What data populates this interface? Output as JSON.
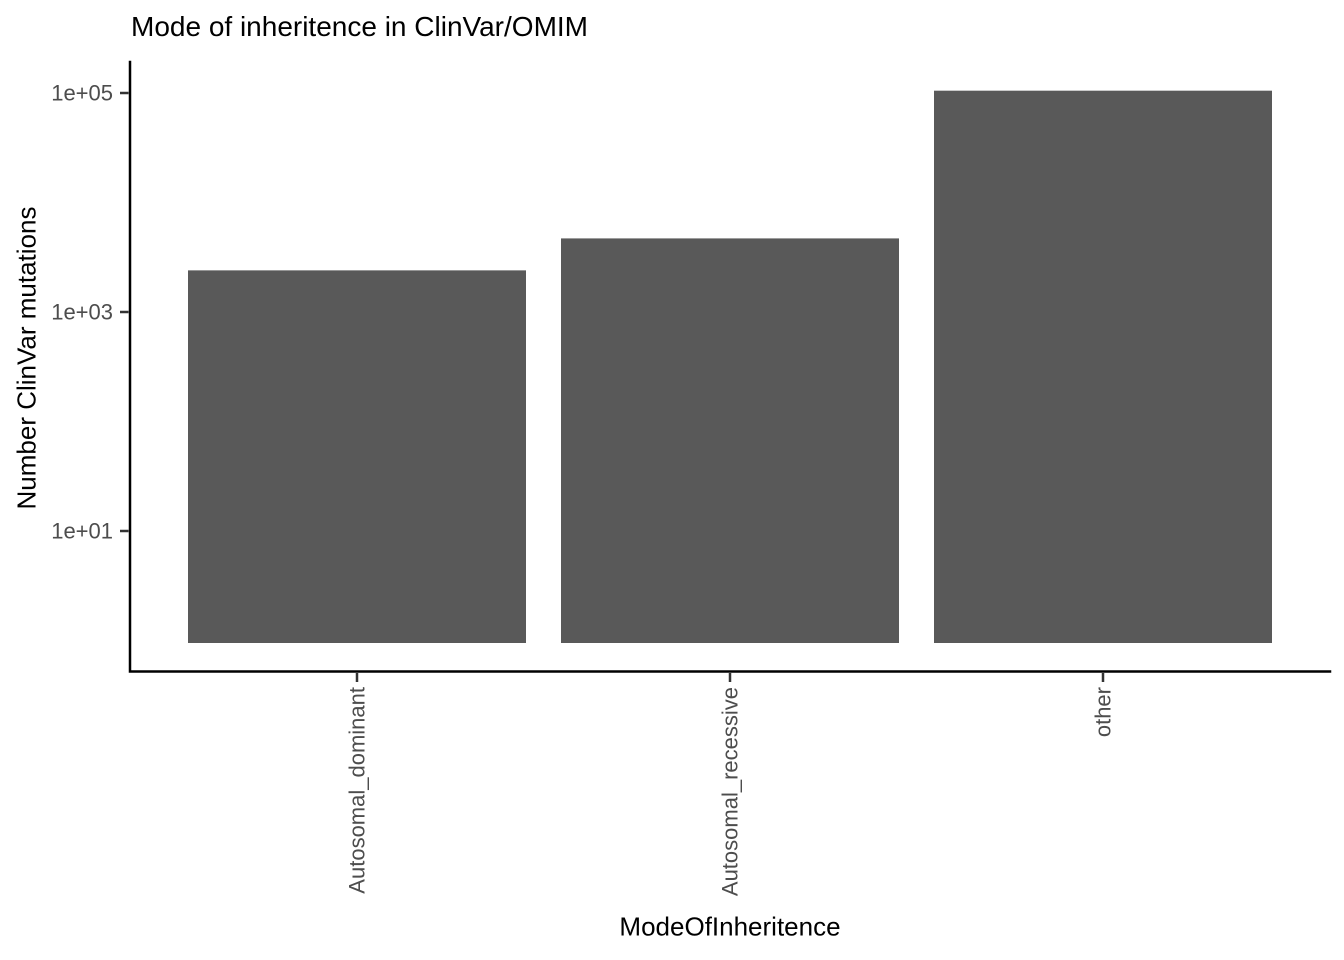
{
  "chart_data": {
    "type": "bar",
    "title": "Mode of inheritence in ClinVar/OMIM",
    "xlabel": "ModeOfInheritence",
    "ylabel": "Number ClinVar mutations",
    "categories": [
      "Autosomal_dominant",
      "Autosomal_recessive",
      "other"
    ],
    "values": [
      2400,
      4700,
      105000
    ],
    "y_scale": "log10",
    "y_ticks": [
      {
        "label": "1e+01",
        "value": 10
      },
      {
        "label": "1e+03",
        "value": 1000
      },
      {
        "label": "1e+05",
        "value": 100000
      }
    ],
    "ylim": [
      0.5,
      200000
    ],
    "bar_baseline": 1,
    "grid": false,
    "legend": false,
    "colors": {
      "bar_fill": "#595959",
      "axis_line": "#000000",
      "tick_mark": "#333333",
      "tick_label": "#4D4D4D",
      "title_text": "#000000",
      "background": "#ffffff"
    }
  }
}
